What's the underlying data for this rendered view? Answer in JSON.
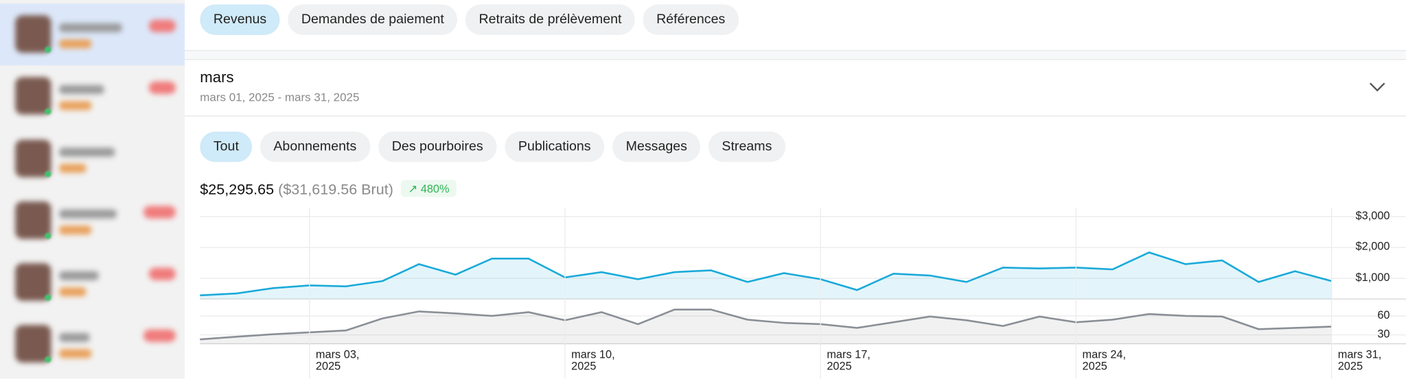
{
  "tabs": [
    "Revenus",
    "Demandes de paiement",
    "Retraits de prélèvement",
    "Références"
  ],
  "period": {
    "title": "mars",
    "range": "mars 01, 2025 - mars 31, 2025"
  },
  "filters": [
    "Tout",
    "Abonnements",
    "Des pourboires",
    "Publications",
    "Messages",
    "Streams"
  ],
  "summary": {
    "net": "$25,295.65",
    "gross": "($31,619.56 Brut)",
    "change": "480%"
  },
  "chart_data": [
    {
      "type": "area",
      "color": "#1aaad9",
      "x": [
        "2025-02-28",
        "2025-03-01",
        "2025-03-02",
        "2025-03-03",
        "2025-03-04",
        "2025-03-05",
        "2025-03-06",
        "2025-03-07",
        "2025-03-08",
        "2025-03-09",
        "2025-03-10",
        "2025-03-11",
        "2025-03-12",
        "2025-03-13",
        "2025-03-14",
        "2025-03-15",
        "2025-03-16",
        "2025-03-17",
        "2025-03-18",
        "2025-03-19",
        "2025-03-20",
        "2025-03-21",
        "2025-03-22",
        "2025-03-23",
        "2025-03-24",
        "2025-03-25",
        "2025-03-26",
        "2025-03-27",
        "2025-03-28",
        "2025-03-29",
        "2025-03-30",
        "2025-03-31"
      ],
      "values": [
        450,
        510,
        680,
        770,
        740,
        910,
        1460,
        1120,
        1640,
        1640,
        1030,
        1200,
        970,
        1200,
        1260,
        880,
        1170,
        970,
        620,
        1150,
        1090,
        880,
        1350,
        1320,
        1350,
        1290,
        1840,
        1460,
        1580,
        880,
        1230,
        910
      ],
      "xlim": [
        "2025-02-28",
        "2025-03-31"
      ],
      "ylim": [
        330,
        3290
      ],
      "yticks": [
        {
          "value": 1000,
          "label": "$1,000"
        },
        {
          "value": 2000,
          "label": "$2,000"
        },
        {
          "value": 3000,
          "label": "$3,000"
        }
      ],
      "grid": true
    },
    {
      "type": "area",
      "color": "#8a8f96",
      "x": [
        "2025-02-28",
        "2025-03-01",
        "2025-03-02",
        "2025-03-03",
        "2025-03-04",
        "2025-03-05",
        "2025-03-06",
        "2025-03-07",
        "2025-03-08",
        "2025-03-09",
        "2025-03-10",
        "2025-03-11",
        "2025-03-12",
        "2025-03-13",
        "2025-03-14",
        "2025-03-15",
        "2025-03-16",
        "2025-03-17",
        "2025-03-18",
        "2025-03-19",
        "2025-03-20",
        "2025-03-21",
        "2025-03-22",
        "2025-03-23",
        "2025-03-24",
        "2025-03-25",
        "2025-03-26",
        "2025-03-27",
        "2025-03-28",
        "2025-03-29",
        "2025-03-30",
        "2025-03-31"
      ],
      "values": [
        23,
        27,
        31,
        34,
        37,
        56,
        67,
        64,
        60,
        66,
        53,
        66,
        47,
        70,
        70,
        54,
        49,
        47,
        41,
        50,
        59,
        53,
        44,
        59,
        50,
        54,
        63,
        60,
        59,
        39,
        41,
        43
      ],
      "xlim": [
        "2025-02-28",
        "2025-03-31"
      ],
      "ylim": [
        16,
        74
      ],
      "yticks": [
        30,
        60
      ],
      "xticks": [
        {
          "value": "2025-03-03",
          "label": "mars 03, 2025"
        },
        {
          "value": "2025-03-10",
          "label": "mars 10, 2025"
        },
        {
          "value": "2025-03-17",
          "label": "mars 17, 2025"
        },
        {
          "value": "2025-03-24",
          "label": "mars 24, 2025"
        },
        {
          "value": "2025-03-31",
          "label": "mars 31, 2025"
        }
      ],
      "grid": true
    }
  ]
}
